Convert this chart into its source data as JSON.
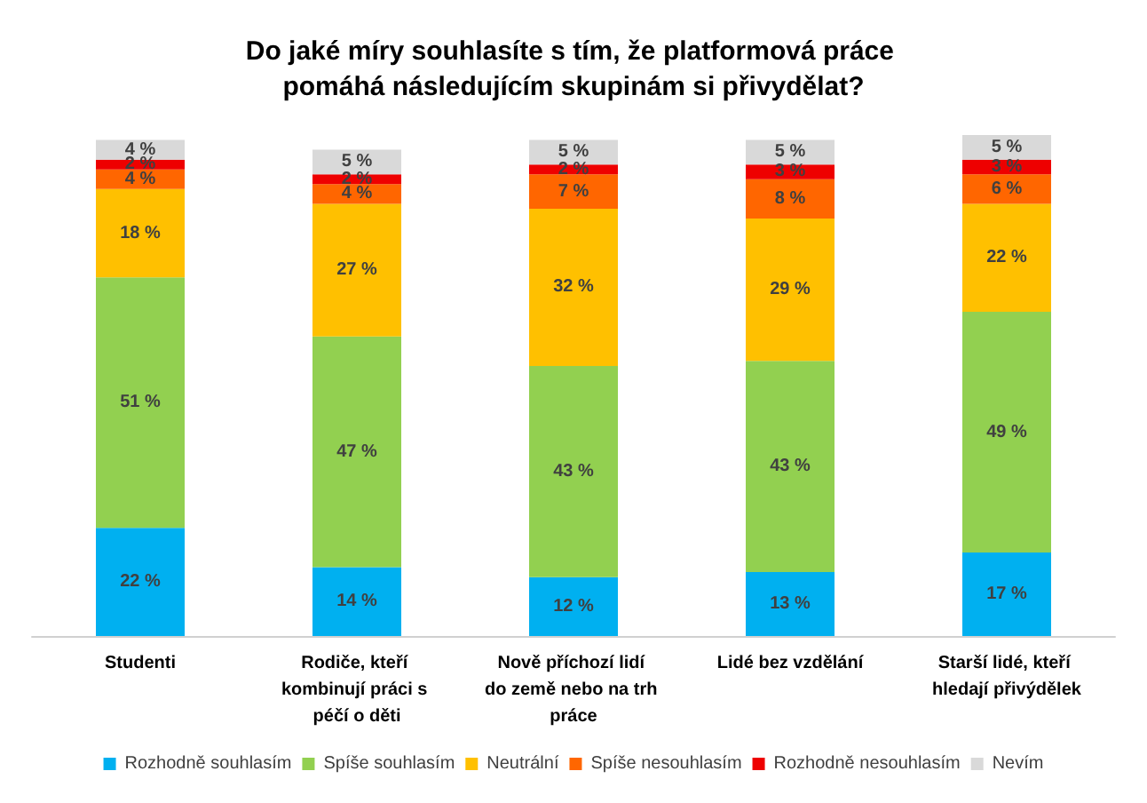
{
  "chart_data": {
    "type": "bar",
    "stacked": true,
    "title": "Do jaké míry souhlasíte s tím, že platformová práce pomáhá následujícím skupinám si přivydělat?",
    "categories": [
      "Studenti",
      "Rodiče, kteří kombinují práci s péčí o děti",
      "Nově příchozí lidí do země nebo na trh práce",
      "Lidé bez vzdělání",
      "Starší lidé, kteří hledají přivýdělek"
    ],
    "series": [
      {
        "name": "Rozhodně souhlasím",
        "color": "#00b0f0",
        "values": [
          22,
          14,
          12,
          13,
          17
        ],
        "value_labels": [
          "22 %",
          "14 %",
          "12 %",
          "13 %",
          "17 %"
        ]
      },
      {
        "name": "Spíše souhlasím",
        "color": "#92d050",
        "values": [
          51,
          47,
          43,
          43,
          49
        ],
        "value_labels": [
          "51 %",
          "47 %",
          "43 %",
          "43 %",
          "49 %"
        ]
      },
      {
        "name": "Neutrální",
        "color": "#ffc000",
        "values": [
          18,
          27,
          32,
          29,
          22
        ],
        "value_labels": [
          "18 %",
          "27 %",
          "32 %",
          "29 %",
          "22 %"
        ]
      },
      {
        "name": "Spíše nesouhlasím",
        "color": "#ff6600",
        "values": [
          4,
          4,
          7,
          8,
          6
        ],
        "value_labels": [
          "4 %",
          "4 %",
          "7 %",
          "8 %",
          "6 %"
        ]
      },
      {
        "name": "Rozhodně nesouhlasím",
        "color": "#ee0000",
        "values": [
          2,
          2,
          2,
          3,
          3
        ],
        "value_labels": [
          "2 %",
          "2 %",
          "2 %",
          "3 %",
          "3 %"
        ]
      },
      {
        "name": "Nevím",
        "color": "#d9d9d9",
        "values": [
          4,
          5,
          5,
          5,
          5
        ],
        "value_labels": [
          "4 %",
          "5 %",
          "5 %",
          "5 %",
          "5 %"
        ]
      }
    ],
    "legend": "bottom"
  }
}
